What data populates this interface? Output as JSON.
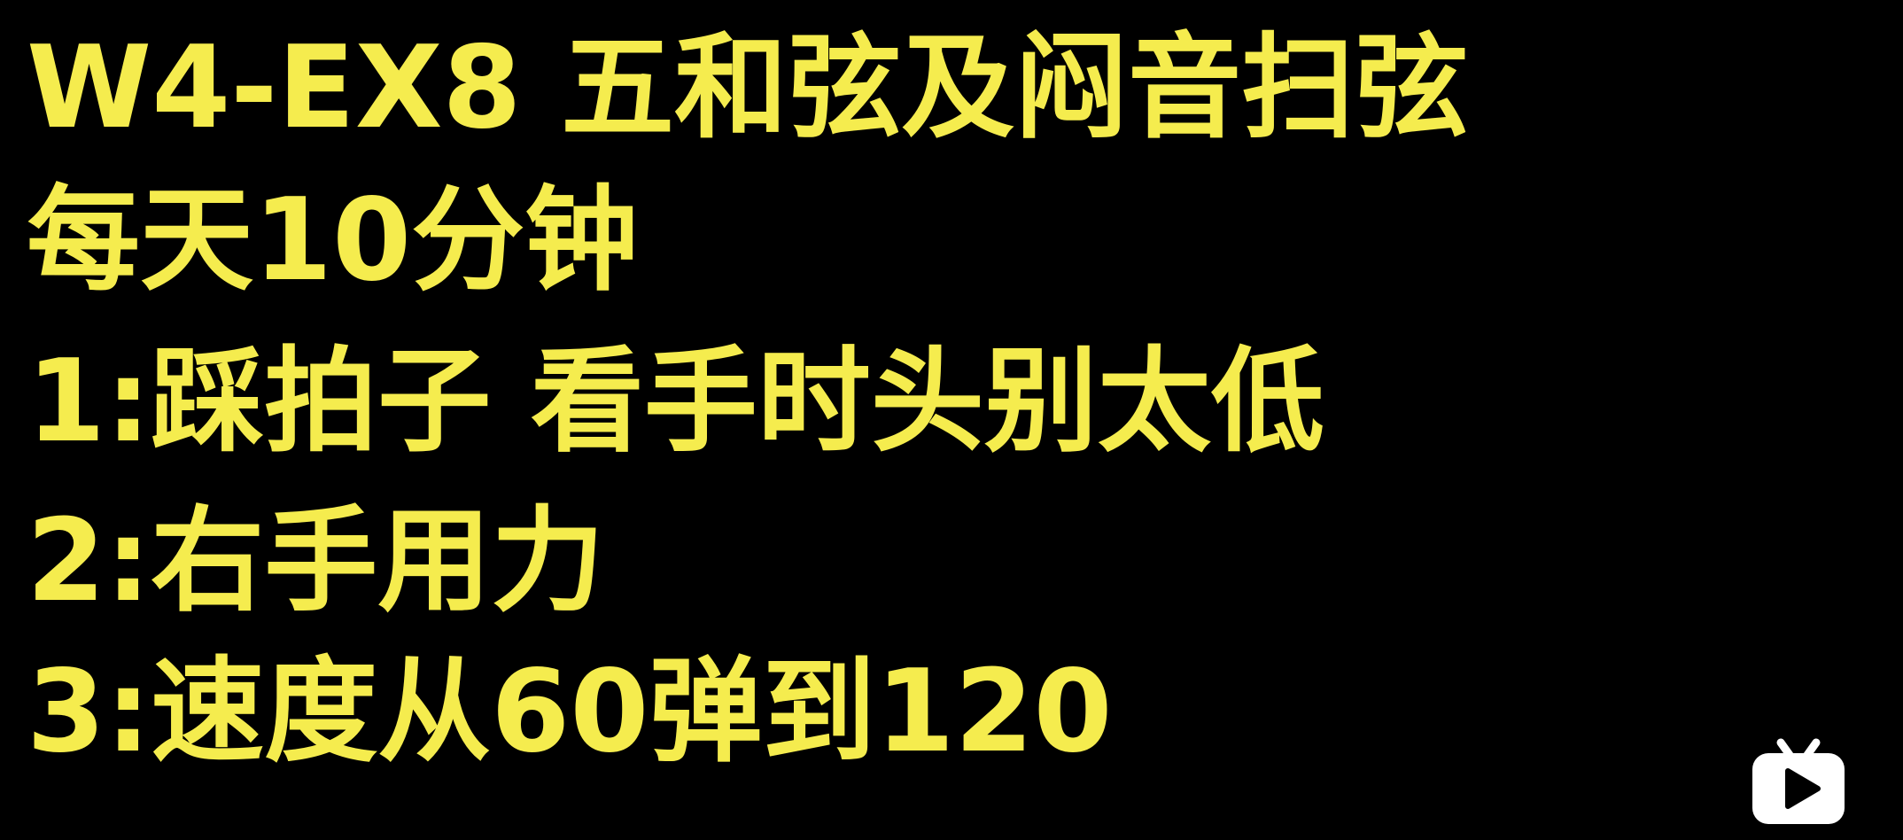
{
  "title": "W4-EX8 五和弦及闷音扫弦",
  "lines": [
    "每天10分钟",
    "1:踩拍子 看手时头别太低",
    "2:右手用力",
    "3:速度从60弹到120"
  ],
  "colors": {
    "background": "#000000",
    "text": "#F5EC4E",
    "logo": "#FFFFFF"
  },
  "icons": {
    "watermark": "bilibili-tv-logo-icon"
  }
}
